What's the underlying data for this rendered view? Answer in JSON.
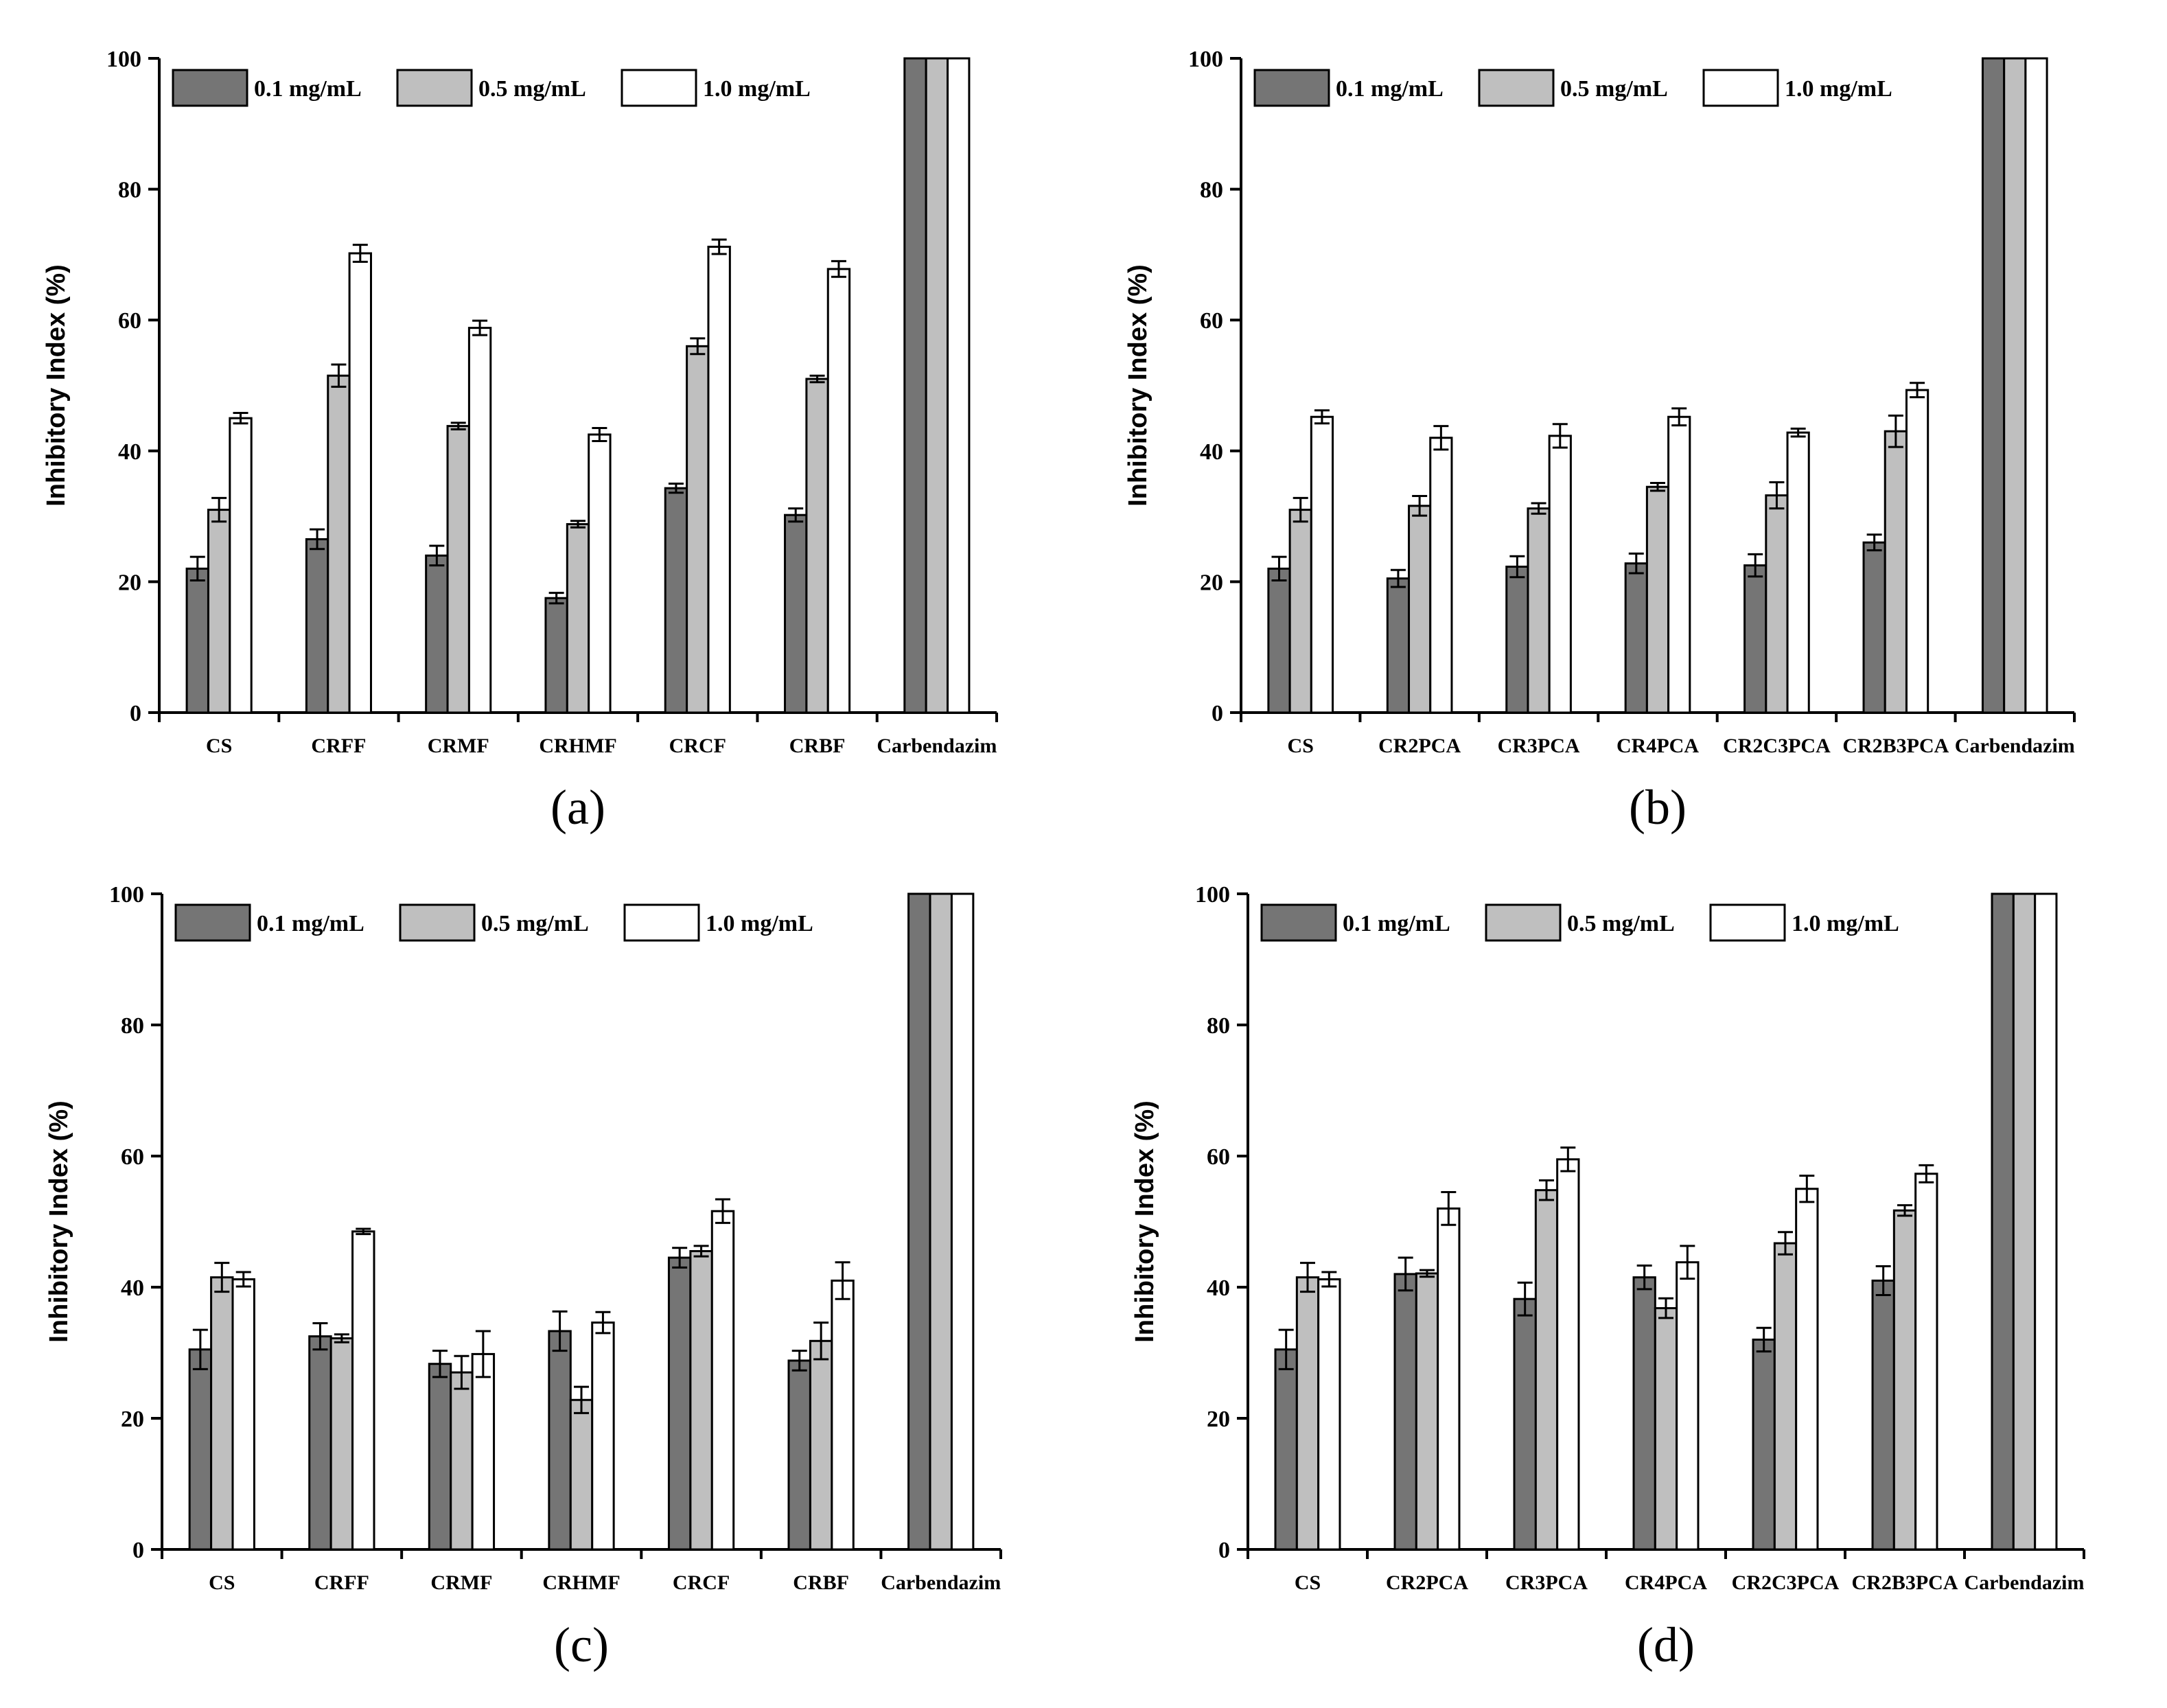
{
  "colors": {
    "series_0": "#757575",
    "series_1": "#bfbfbf",
    "series_2": "#ffffff",
    "stroke": "#000000"
  },
  "chart_data": [
    {
      "type": "bar",
      "panel_label": "(a)",
      "ylabel": "Inhibitory Index (%)",
      "ylim": [
        0,
        100
      ],
      "yticks": [
        "0",
        "20",
        "40",
        "60",
        "80",
        "100"
      ],
      "categories": [
        "CS",
        "CRFF",
        "CRMF",
        "CRHMF",
        "CRCF",
        "CRBF",
        "Carbendazim"
      ],
      "series": [
        {
          "name": "0.1 mg/mL",
          "values": [
            22,
            26.5,
            24,
            17.5,
            34.3,
            30.2,
            100
          ],
          "errors": [
            1.8,
            1.5,
            1.5,
            0.8,
            0.7,
            1.0,
            0
          ]
        },
        {
          "name": "0.5 mg/mL",
          "values": [
            31,
            51.5,
            43.8,
            28.8,
            56,
            51,
            100
          ],
          "errors": [
            1.8,
            1.7,
            0.5,
            0.5,
            1.2,
            0.5,
            0
          ]
        },
        {
          "name": "1.0 mg/mL",
          "values": [
            45,
            70.2,
            58.8,
            42.5,
            71.2,
            67.8,
            100
          ],
          "errors": [
            0.8,
            1.3,
            1.1,
            1.0,
            1.1,
            1.2,
            0
          ]
        }
      ]
    },
    {
      "type": "bar",
      "panel_label": "(b)",
      "ylabel": "Inhibitory Index (%)",
      "ylim": [
        0,
        100
      ],
      "yticks": [
        "0",
        "20",
        "40",
        "60",
        "80",
        "100"
      ],
      "categories": [
        "CS",
        "CR2PCA",
        "CR3PCA",
        "CR4PCA",
        "CR2C3PCA",
        "CR2B3PCA",
        "Carbendazim"
      ],
      "series": [
        {
          "name": "0.1 mg/mL",
          "values": [
            22,
            20.5,
            22.3,
            22.8,
            22.5,
            26,
            100
          ],
          "errors": [
            1.8,
            1.3,
            1.6,
            1.5,
            1.7,
            1.2,
            0
          ]
        },
        {
          "name": "0.5 mg/mL",
          "values": [
            31,
            31.6,
            31.2,
            34.5,
            33.2,
            43,
            100
          ],
          "errors": [
            1.8,
            1.5,
            0.8,
            0.6,
            2.0,
            2.4,
            0
          ]
        },
        {
          "name": "1.0 mg/mL",
          "values": [
            45.2,
            42,
            42.3,
            45.2,
            42.8,
            49.3,
            100
          ],
          "errors": [
            1.0,
            1.8,
            1.8,
            1.3,
            0.6,
            1.1,
            0
          ]
        }
      ]
    },
    {
      "type": "bar",
      "panel_label": "(c)",
      "ylabel": "Inhibitory Index (%)",
      "ylim": [
        0,
        100
      ],
      "yticks": [
        "0",
        "20",
        "40",
        "60",
        "80",
        "100"
      ],
      "categories": [
        "CS",
        "CRFF",
        "CRMF",
        "CRHMF",
        "CRCF",
        "CRBF",
        "Carbendazim"
      ],
      "series": [
        {
          "name": "0.1 mg/mL",
          "values": [
            30.5,
            32.5,
            28.3,
            33.3,
            44.5,
            28.8,
            100
          ],
          "errors": [
            3.0,
            2.0,
            2.0,
            3.0,
            1.5,
            1.5,
            0
          ]
        },
        {
          "name": "0.5 mg/mL",
          "values": [
            41.5,
            32.2,
            27,
            22.8,
            45.5,
            31.8,
            100
          ],
          "errors": [
            2.2,
            0.6,
            2.5,
            2.0,
            0.8,
            2.8,
            0
          ]
        },
        {
          "name": "1.0 mg/mL",
          "values": [
            41.2,
            48.5,
            29.8,
            34.6,
            51.6,
            41,
            100
          ],
          "errors": [
            1.1,
            0.4,
            3.5,
            1.6,
            1.8,
            2.8,
            0
          ]
        }
      ]
    },
    {
      "type": "bar",
      "panel_label": "(d)",
      "ylabel": "Inhibitory Index (%)",
      "ylim": [
        0,
        100
      ],
      "yticks": [
        "0",
        "20",
        "40",
        "60",
        "80",
        "100"
      ],
      "categories": [
        "CS",
        "CR2PCA",
        "CR3PCA",
        "CR4PCA",
        "CR2C3PCA",
        "CR2B3PCA",
        "Carbendazim"
      ],
      "series": [
        {
          "name": "0.1 mg/mL",
          "values": [
            30.5,
            42,
            38.2,
            41.5,
            32,
            41,
            100
          ],
          "errors": [
            3.0,
            2.5,
            2.5,
            1.8,
            1.8,
            2.2,
            0
          ]
        },
        {
          "name": "0.5 mg/mL",
          "values": [
            41.5,
            42.1,
            54.8,
            36.8,
            46.7,
            51.7,
            100
          ],
          "errors": [
            2.2,
            0.5,
            1.5,
            1.5,
            1.7,
            0.8,
            0
          ]
        },
        {
          "name": "1.0 mg/mL",
          "values": [
            41.2,
            52,
            59.5,
            43.8,
            55,
            57.3,
            100
          ],
          "errors": [
            1.1,
            2.5,
            1.8,
            2.5,
            2.0,
            1.3,
            0
          ]
        }
      ]
    }
  ]
}
